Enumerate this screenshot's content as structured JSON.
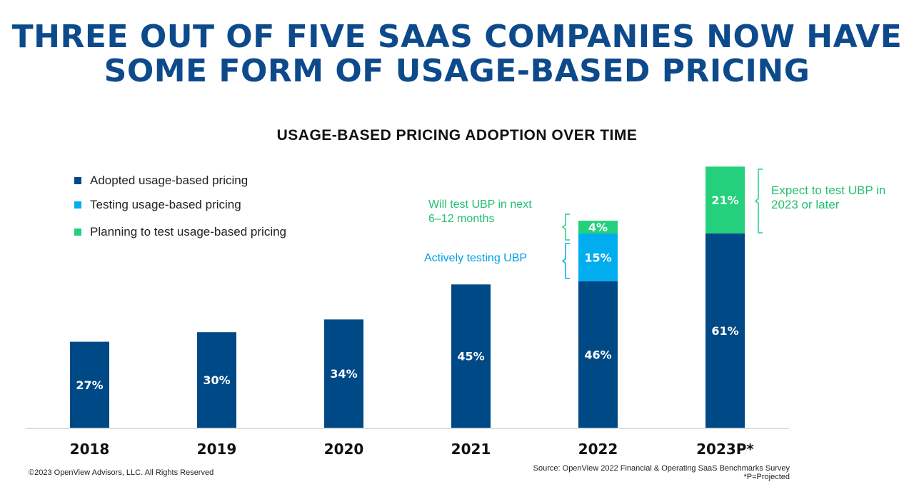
{
  "title_lines": [
    "THREE OUT OF FIVE SAAS COMPANIES NOW HAVE",
    "SOME FORM OF USAGE-BASED PRICING"
  ],
  "colors": {
    "title": "#0d4a8c",
    "adopted": "#004987",
    "testing": "#00aeef",
    "planning": "#24d07b"
  },
  "chart_data": {
    "type": "bar",
    "stacked": true,
    "title": "USAGE-BASED PRICING ADOPTION OVER TIME",
    "categories": [
      "2018",
      "2019",
      "2020",
      "2021",
      "2022",
      "2023P*"
    ],
    "series": [
      {
        "name": "Adopted usage-based pricing",
        "values": [
          27,
          30,
          34,
          45,
          46,
          61
        ],
        "labels": [
          "27%",
          "30%",
          "34%",
          "45%",
          "46%",
          "61%"
        ]
      },
      {
        "name": "Testing usage-based pricing",
        "values": [
          0,
          0,
          0,
          0,
          15,
          0
        ],
        "labels": [
          "",
          "",
          "",
          "",
          "15%",
          ""
        ]
      },
      {
        "name": "Planning to test usage-based pricing",
        "values": [
          0,
          0,
          0,
          0,
          4,
          21
        ],
        "labels": [
          "",
          "",
          "",
          "",
          "4%",
          "21%"
        ]
      }
    ],
    "ylim": [
      0,
      85
    ],
    "grid": false,
    "legend": "top-left",
    "annotations": [
      "Will test UBP in next 6–12 months",
      "Actively testing UBP",
      "Expect to test UBP in 2023 or later"
    ]
  },
  "annotation_lines": {
    "will_test": [
      "Will test UBP in next",
      "6–12 months"
    ],
    "active": "Actively testing UBP",
    "expect": [
      "Expect to test UBP in",
      "2023 or later"
    ]
  },
  "footer": {
    "copyright": "©2023 OpenView Advisors, LLC. All Rights Reserved",
    "source": "Source: OpenView 2022 Financial & Operating SaaS Benchmarks Survey",
    "note": "*P=Projected"
  }
}
